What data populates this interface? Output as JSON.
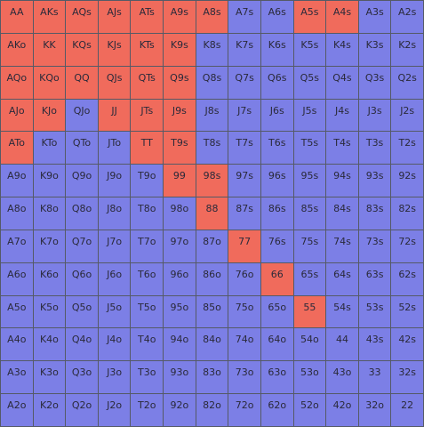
{
  "colors": {
    "selected": "#f06b5c",
    "unselected": "#7c7fe6",
    "border": "#555a66",
    "text": "#2a2a3a"
  },
  "grid": {
    "rows": [
      [
        {
          "hand": "AA",
          "selected": true
        },
        {
          "hand": "AKs",
          "selected": true
        },
        {
          "hand": "AQs",
          "selected": true
        },
        {
          "hand": "AJs",
          "selected": true
        },
        {
          "hand": "ATs",
          "selected": true
        },
        {
          "hand": "A9s",
          "selected": true
        },
        {
          "hand": "A8s",
          "selected": true
        },
        {
          "hand": "A7s",
          "selected": false
        },
        {
          "hand": "A6s",
          "selected": false
        },
        {
          "hand": "A5s",
          "selected": true
        },
        {
          "hand": "A4s",
          "selected": true
        },
        {
          "hand": "A3s",
          "selected": false
        },
        {
          "hand": "A2s",
          "selected": false
        }
      ],
      [
        {
          "hand": "AKo",
          "selected": true
        },
        {
          "hand": "KK",
          "selected": true
        },
        {
          "hand": "KQs",
          "selected": true
        },
        {
          "hand": "KJs",
          "selected": true
        },
        {
          "hand": "KTs",
          "selected": true
        },
        {
          "hand": "K9s",
          "selected": true
        },
        {
          "hand": "K8s",
          "selected": false
        },
        {
          "hand": "K7s",
          "selected": false
        },
        {
          "hand": "K6s",
          "selected": false
        },
        {
          "hand": "K5s",
          "selected": false
        },
        {
          "hand": "K4s",
          "selected": false
        },
        {
          "hand": "K3s",
          "selected": false
        },
        {
          "hand": "K2s",
          "selected": false
        }
      ],
      [
        {
          "hand": "AQo",
          "selected": true
        },
        {
          "hand": "KQo",
          "selected": true
        },
        {
          "hand": "QQ",
          "selected": true
        },
        {
          "hand": "QJs",
          "selected": true
        },
        {
          "hand": "QTs",
          "selected": true
        },
        {
          "hand": "Q9s",
          "selected": true
        },
        {
          "hand": "Q8s",
          "selected": false
        },
        {
          "hand": "Q7s",
          "selected": false
        },
        {
          "hand": "Q6s",
          "selected": false
        },
        {
          "hand": "Q5s",
          "selected": false
        },
        {
          "hand": "Q4s",
          "selected": false
        },
        {
          "hand": "Q3s",
          "selected": false
        },
        {
          "hand": "Q2s",
          "selected": false
        }
      ],
      [
        {
          "hand": "AJo",
          "selected": true
        },
        {
          "hand": "KJo",
          "selected": true
        },
        {
          "hand": "QJo",
          "selected": false
        },
        {
          "hand": "JJ",
          "selected": true
        },
        {
          "hand": "JTs",
          "selected": true
        },
        {
          "hand": "J9s",
          "selected": true
        },
        {
          "hand": "J8s",
          "selected": false
        },
        {
          "hand": "J7s",
          "selected": false
        },
        {
          "hand": "J6s",
          "selected": false
        },
        {
          "hand": "J5s",
          "selected": false
        },
        {
          "hand": "J4s",
          "selected": false
        },
        {
          "hand": "J3s",
          "selected": false
        },
        {
          "hand": "J2s",
          "selected": false
        }
      ],
      [
        {
          "hand": "ATo",
          "selected": true
        },
        {
          "hand": "KTo",
          "selected": false
        },
        {
          "hand": "QTo",
          "selected": false
        },
        {
          "hand": "JTo",
          "selected": false
        },
        {
          "hand": "TT",
          "selected": true
        },
        {
          "hand": "T9s",
          "selected": true
        },
        {
          "hand": "T8s",
          "selected": false
        },
        {
          "hand": "T7s",
          "selected": false
        },
        {
          "hand": "T6s",
          "selected": false
        },
        {
          "hand": "T5s",
          "selected": false
        },
        {
          "hand": "T4s",
          "selected": false
        },
        {
          "hand": "T3s",
          "selected": false
        },
        {
          "hand": "T2s",
          "selected": false
        }
      ],
      [
        {
          "hand": "A9o",
          "selected": false
        },
        {
          "hand": "K9o",
          "selected": false
        },
        {
          "hand": "Q9o",
          "selected": false
        },
        {
          "hand": "J9o",
          "selected": false
        },
        {
          "hand": "T9o",
          "selected": false
        },
        {
          "hand": "99",
          "selected": true
        },
        {
          "hand": "98s",
          "selected": true
        },
        {
          "hand": "97s",
          "selected": false
        },
        {
          "hand": "96s",
          "selected": false
        },
        {
          "hand": "95s",
          "selected": false
        },
        {
          "hand": "94s",
          "selected": false
        },
        {
          "hand": "93s",
          "selected": false
        },
        {
          "hand": "92s",
          "selected": false
        }
      ],
      [
        {
          "hand": "A8o",
          "selected": false
        },
        {
          "hand": "K8o",
          "selected": false
        },
        {
          "hand": "Q8o",
          "selected": false
        },
        {
          "hand": "J8o",
          "selected": false
        },
        {
          "hand": "T8o",
          "selected": false
        },
        {
          "hand": "98o",
          "selected": false
        },
        {
          "hand": "88",
          "selected": true
        },
        {
          "hand": "87s",
          "selected": false
        },
        {
          "hand": "86s",
          "selected": false
        },
        {
          "hand": "85s",
          "selected": false
        },
        {
          "hand": "84s",
          "selected": false
        },
        {
          "hand": "83s",
          "selected": false
        },
        {
          "hand": "82s",
          "selected": false
        }
      ],
      [
        {
          "hand": "A7o",
          "selected": false
        },
        {
          "hand": "K7o",
          "selected": false
        },
        {
          "hand": "Q7o",
          "selected": false
        },
        {
          "hand": "J7o",
          "selected": false
        },
        {
          "hand": "T7o",
          "selected": false
        },
        {
          "hand": "97o",
          "selected": false
        },
        {
          "hand": "87o",
          "selected": false
        },
        {
          "hand": "77",
          "selected": true
        },
        {
          "hand": "76s",
          "selected": false
        },
        {
          "hand": "75s",
          "selected": false
        },
        {
          "hand": "74s",
          "selected": false
        },
        {
          "hand": "73s",
          "selected": false
        },
        {
          "hand": "72s",
          "selected": false
        }
      ],
      [
        {
          "hand": "A6o",
          "selected": false
        },
        {
          "hand": "K6o",
          "selected": false
        },
        {
          "hand": "Q6o",
          "selected": false
        },
        {
          "hand": "J6o",
          "selected": false
        },
        {
          "hand": "T6o",
          "selected": false
        },
        {
          "hand": "96o",
          "selected": false
        },
        {
          "hand": "86o",
          "selected": false
        },
        {
          "hand": "76o",
          "selected": false
        },
        {
          "hand": "66",
          "selected": true
        },
        {
          "hand": "65s",
          "selected": false
        },
        {
          "hand": "64s",
          "selected": false
        },
        {
          "hand": "63s",
          "selected": false
        },
        {
          "hand": "62s",
          "selected": false
        }
      ],
      [
        {
          "hand": "A5o",
          "selected": false
        },
        {
          "hand": "K5o",
          "selected": false
        },
        {
          "hand": "Q5o",
          "selected": false
        },
        {
          "hand": "J5o",
          "selected": false
        },
        {
          "hand": "T5o",
          "selected": false
        },
        {
          "hand": "95o",
          "selected": false
        },
        {
          "hand": "85o",
          "selected": false
        },
        {
          "hand": "75o",
          "selected": false
        },
        {
          "hand": "65o",
          "selected": false
        },
        {
          "hand": "55",
          "selected": true
        },
        {
          "hand": "54s",
          "selected": false
        },
        {
          "hand": "53s",
          "selected": false
        },
        {
          "hand": "52s",
          "selected": false
        }
      ],
      [
        {
          "hand": "A4o",
          "selected": false
        },
        {
          "hand": "K4o",
          "selected": false
        },
        {
          "hand": "Q4o",
          "selected": false
        },
        {
          "hand": "J4o",
          "selected": false
        },
        {
          "hand": "T4o",
          "selected": false
        },
        {
          "hand": "94o",
          "selected": false
        },
        {
          "hand": "84o",
          "selected": false
        },
        {
          "hand": "74o",
          "selected": false
        },
        {
          "hand": "64o",
          "selected": false
        },
        {
          "hand": "54o",
          "selected": false
        },
        {
          "hand": "44",
          "selected": false
        },
        {
          "hand": "43s",
          "selected": false
        },
        {
          "hand": "42s",
          "selected": false
        }
      ],
      [
        {
          "hand": "A3o",
          "selected": false
        },
        {
          "hand": "K3o",
          "selected": false
        },
        {
          "hand": "Q3o",
          "selected": false
        },
        {
          "hand": "J3o",
          "selected": false
        },
        {
          "hand": "T3o",
          "selected": false
        },
        {
          "hand": "93o",
          "selected": false
        },
        {
          "hand": "83o",
          "selected": false
        },
        {
          "hand": "73o",
          "selected": false
        },
        {
          "hand": "63o",
          "selected": false
        },
        {
          "hand": "53o",
          "selected": false
        },
        {
          "hand": "43o",
          "selected": false
        },
        {
          "hand": "33",
          "selected": false
        },
        {
          "hand": "32s",
          "selected": false
        }
      ],
      [
        {
          "hand": "A2o",
          "selected": false
        },
        {
          "hand": "K2o",
          "selected": false
        },
        {
          "hand": "Q2o",
          "selected": false
        },
        {
          "hand": "J2o",
          "selected": false
        },
        {
          "hand": "T2o",
          "selected": false
        },
        {
          "hand": "92o",
          "selected": false
        },
        {
          "hand": "82o",
          "selected": false
        },
        {
          "hand": "72o",
          "selected": false
        },
        {
          "hand": "62o",
          "selected": false
        },
        {
          "hand": "52o",
          "selected": false
        },
        {
          "hand": "42o",
          "selected": false
        },
        {
          "hand": "32o",
          "selected": false
        },
        {
          "hand": "22",
          "selected": false
        }
      ]
    ]
  }
}
